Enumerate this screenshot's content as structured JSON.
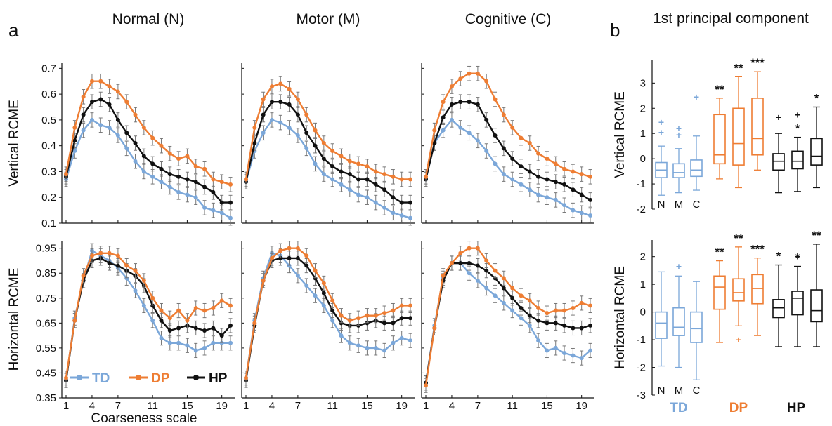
{
  "panel_labels": [
    "a",
    "b"
  ],
  "columns": [
    "Normal (N)",
    "Motor (M)",
    "Cognitive (C)"
  ],
  "xlabel": "Coarseness scale",
  "rows": [
    {
      "ylabel": "Vertical RCME",
      "ylim": [
        0.1,
        0.72
      ],
      "ticks": [
        "0.1",
        "0.2",
        "0.3",
        "0.4",
        "0.5",
        "0.6",
        "0.7"
      ]
    },
    {
      "ylabel": "Horizontal RCME",
      "ylim": [
        0.35,
        0.98
      ],
      "ticks": [
        "0.35",
        "0.45",
        "0.55",
        "0.65",
        "0.75",
        "0.85",
        "0.95"
      ]
    }
  ],
  "xticks": [
    "1",
    "4",
    "7",
    "11",
    "15",
    "19"
  ],
  "legend": [
    {
      "label": "TD",
      "color": "#7ba7d9"
    },
    {
      "label": "DP",
      "color": "#ee7d33"
    },
    {
      "label": "HP",
      "color": "#111111"
    }
  ],
  "colors": {
    "TD": "#7ba7d9",
    "DP": "#ee7d33",
    "HP": "#111111"
  },
  "chart_data": [
    {
      "type": "line",
      "panel": "a",
      "row": "Vertical RCME",
      "column": "Normal (N)",
      "x": [
        1,
        2,
        3,
        4,
        5,
        6,
        7,
        8,
        9,
        10,
        11,
        12,
        13,
        14,
        15,
        16,
        17,
        18,
        19,
        20
      ],
      "series": [
        {
          "name": "TD",
          "values": [
            0.27,
            0.38,
            0.46,
            0.5,
            0.48,
            0.47,
            0.44,
            0.39,
            0.34,
            0.3,
            0.28,
            0.26,
            0.24,
            0.22,
            0.21,
            0.2,
            0.16,
            0.15,
            0.14,
            0.12
          ]
        },
        {
          "name": "DP",
          "values": [
            0.29,
            0.47,
            0.59,
            0.65,
            0.65,
            0.63,
            0.61,
            0.57,
            0.52,
            0.47,
            0.43,
            0.4,
            0.37,
            0.35,
            0.36,
            0.32,
            0.31,
            0.27,
            0.26,
            0.25
          ]
        },
        {
          "name": "HP",
          "values": [
            0.28,
            0.42,
            0.52,
            0.57,
            0.58,
            0.56,
            0.5,
            0.45,
            0.41,
            0.36,
            0.33,
            0.31,
            0.29,
            0.28,
            0.27,
            0.26,
            0.24,
            0.22,
            0.18,
            0.18
          ]
        }
      ]
    },
    {
      "type": "line",
      "panel": "a",
      "row": "Vertical RCME",
      "column": "Motor (M)",
      "x": [
        1,
        2,
        3,
        4,
        5,
        6,
        7,
        8,
        9,
        10,
        11,
        12,
        13,
        14,
        15,
        16,
        17,
        18,
        19,
        20
      ],
      "series": [
        {
          "name": "TD",
          "values": [
            0.26,
            0.38,
            0.45,
            0.5,
            0.49,
            0.47,
            0.44,
            0.39,
            0.33,
            0.29,
            0.27,
            0.25,
            0.23,
            0.21,
            0.2,
            0.18,
            0.16,
            0.14,
            0.13,
            0.12
          ]
        },
        {
          "name": "DP",
          "values": [
            0.27,
            0.47,
            0.58,
            0.63,
            0.64,
            0.62,
            0.58,
            0.52,
            0.46,
            0.41,
            0.38,
            0.36,
            0.34,
            0.33,
            0.32,
            0.3,
            0.29,
            0.28,
            0.27,
            0.27
          ]
        },
        {
          "name": "HP",
          "values": [
            0.26,
            0.41,
            0.52,
            0.57,
            0.57,
            0.56,
            0.52,
            0.45,
            0.4,
            0.35,
            0.32,
            0.3,
            0.29,
            0.27,
            0.27,
            0.25,
            0.23,
            0.2,
            0.18,
            0.18
          ]
        }
      ]
    },
    {
      "type": "line",
      "panel": "a",
      "row": "Vertical RCME",
      "column": "Cognitive (C)",
      "x": [
        1,
        2,
        3,
        4,
        5,
        6,
        7,
        8,
        9,
        10,
        11,
        12,
        13,
        14,
        15,
        16,
        17,
        18,
        19,
        20
      ],
      "series": [
        {
          "name": "TD",
          "values": [
            0.27,
            0.41,
            0.46,
            0.5,
            0.47,
            0.45,
            0.42,
            0.38,
            0.33,
            0.29,
            0.27,
            0.25,
            0.23,
            0.21,
            0.2,
            0.19,
            0.17,
            0.15,
            0.14,
            0.13
          ]
        },
        {
          "name": "DP",
          "values": [
            0.28,
            0.46,
            0.57,
            0.63,
            0.66,
            0.68,
            0.68,
            0.65,
            0.58,
            0.52,
            0.47,
            0.43,
            0.41,
            0.37,
            0.35,
            0.33,
            0.31,
            0.3,
            0.29,
            0.28
          ]
        },
        {
          "name": "HP",
          "values": [
            0.27,
            0.41,
            0.51,
            0.56,
            0.57,
            0.57,
            0.56,
            0.5,
            0.44,
            0.39,
            0.35,
            0.32,
            0.3,
            0.28,
            0.27,
            0.26,
            0.25,
            0.23,
            0.21,
            0.19
          ]
        }
      ]
    },
    {
      "type": "line",
      "panel": "a",
      "row": "Horizontal RCME",
      "column": "Normal (N)",
      "x": [
        1,
        2,
        3,
        4,
        5,
        6,
        7,
        8,
        9,
        10,
        11,
        12,
        13,
        14,
        15,
        16,
        17,
        18,
        19,
        20
      ],
      "series": [
        {
          "name": "TD",
          "values": [
            0.42,
            0.67,
            0.82,
            0.94,
            0.92,
            0.9,
            0.87,
            0.83,
            0.78,
            0.72,
            0.66,
            0.59,
            0.57,
            0.57,
            0.56,
            0.54,
            0.55,
            0.57,
            0.57,
            0.57
          ]
        },
        {
          "name": "DP",
          "values": [
            0.43,
            0.66,
            0.84,
            0.92,
            0.93,
            0.93,
            0.92,
            0.88,
            0.86,
            0.82,
            0.75,
            0.7,
            0.67,
            0.7,
            0.66,
            0.71,
            0.7,
            0.71,
            0.74,
            0.72
          ]
        },
        {
          "name": "HP",
          "values": [
            0.42,
            0.66,
            0.82,
            0.9,
            0.91,
            0.89,
            0.88,
            0.86,
            0.84,
            0.8,
            0.72,
            0.66,
            0.62,
            0.63,
            0.64,
            0.63,
            0.62,
            0.63,
            0.6,
            0.64
          ]
        }
      ]
    },
    {
      "type": "line",
      "panel": "a",
      "row": "Horizontal RCME",
      "column": "Motor (M)",
      "x": [
        1,
        2,
        3,
        4,
        5,
        6,
        7,
        8,
        9,
        10,
        11,
        12,
        13,
        14,
        15,
        16,
        17,
        18,
        19,
        20
      ],
      "series": [
        {
          "name": "TD",
          "values": [
            0.43,
            0.66,
            0.83,
            0.93,
            0.92,
            0.88,
            0.84,
            0.8,
            0.76,
            0.72,
            0.66,
            0.6,
            0.57,
            0.56,
            0.55,
            0.55,
            0.54,
            0.57,
            0.59,
            0.58
          ]
        },
        {
          "name": "DP",
          "values": [
            0.43,
            0.65,
            0.82,
            0.91,
            0.94,
            0.95,
            0.95,
            0.92,
            0.86,
            0.81,
            0.74,
            0.68,
            0.66,
            0.67,
            0.68,
            0.68,
            0.69,
            0.7,
            0.72,
            0.72
          ]
        },
        {
          "name": "HP",
          "values": [
            0.42,
            0.64,
            0.82,
            0.9,
            0.91,
            0.91,
            0.91,
            0.88,
            0.83,
            0.77,
            0.7,
            0.65,
            0.64,
            0.64,
            0.65,
            0.66,
            0.65,
            0.65,
            0.67,
            0.67
          ]
        }
      ]
    },
    {
      "type": "line",
      "panel": "a",
      "row": "Horizontal RCME",
      "column": "Cognitive (C)",
      "x": [
        1,
        2,
        3,
        4,
        5,
        6,
        7,
        8,
        9,
        10,
        11,
        12,
        13,
        14,
        15,
        16,
        17,
        18,
        19,
        20
      ],
      "series": [
        {
          "name": "TD",
          "values": [
            0.41,
            0.64,
            0.83,
            0.89,
            0.89,
            0.85,
            0.82,
            0.79,
            0.76,
            0.73,
            0.7,
            0.67,
            0.64,
            0.58,
            0.54,
            0.55,
            0.53,
            0.52,
            0.51,
            0.54
          ]
        },
        {
          "name": "DP",
          "values": [
            0.4,
            0.63,
            0.84,
            0.89,
            0.93,
            0.95,
            0.95,
            0.9,
            0.86,
            0.83,
            0.79,
            0.76,
            0.74,
            0.71,
            0.69,
            0.7,
            0.7,
            0.71,
            0.73,
            0.72
          ]
        },
        {
          "name": "HP",
          "values": [
            0.41,
            0.63,
            0.82,
            0.89,
            0.89,
            0.89,
            0.88,
            0.86,
            0.83,
            0.79,
            0.75,
            0.71,
            0.68,
            0.66,
            0.65,
            0.65,
            0.64,
            0.63,
            0.63,
            0.64
          ]
        }
      ]
    },
    {
      "type": "box",
      "panel": "b",
      "title": "1st principal component",
      "ylabel": "Vertical RCME",
      "ylim": [
        -2,
        3.9
      ],
      "yticks": [
        -2,
        -1,
        0,
        1,
        2,
        3
      ],
      "groups": [
        "TD",
        "DP",
        "HP"
      ],
      "conditions": [
        "N",
        "M",
        "C"
      ],
      "boxes": [
        {
          "group": "TD",
          "condition": "N",
          "whisker_low": -1.45,
          "q1": -0.75,
          "median": -0.45,
          "q3": -0.15,
          "whisker_high": 0.5,
          "outliers": [
            1.05,
            1.45
          ],
          "sig": ""
        },
        {
          "group": "TD",
          "condition": "M",
          "whisker_low": -1.35,
          "q1": -0.75,
          "median": -0.55,
          "q3": -0.2,
          "whisker_high": 0.4,
          "outliers": [
            0.95,
            1.2
          ],
          "sig": ""
        },
        {
          "group": "TD",
          "condition": "C",
          "whisker_low": -1.25,
          "q1": -0.7,
          "median": -0.45,
          "q3": -0.05,
          "whisker_high": 0.9,
          "outliers": [
            2.45
          ],
          "sig": ""
        },
        {
          "group": "DP",
          "condition": "N",
          "whisker_low": -0.8,
          "q1": -0.2,
          "median": 0.15,
          "q3": 1.75,
          "whisker_high": 2.4,
          "outliers": [],
          "sig": "**"
        },
        {
          "group": "DP",
          "condition": "M",
          "whisker_low": -1.15,
          "q1": -0.25,
          "median": 0.6,
          "q3": 2.0,
          "whisker_high": 3.25,
          "outliers": [],
          "sig": "**"
        },
        {
          "group": "DP",
          "condition": "C",
          "whisker_low": -0.45,
          "q1": 0.15,
          "median": 0.8,
          "q3": 2.4,
          "whisker_high": 3.45,
          "outliers": [],
          "sig": "***"
        },
        {
          "group": "HP",
          "condition": "N",
          "whisker_low": -1.35,
          "q1": -0.45,
          "median": -0.1,
          "q3": 0.2,
          "whisker_high": 1.0,
          "outliers": [
            1.65
          ],
          "sig": ""
        },
        {
          "group": "HP",
          "condition": "M",
          "whisker_low": -1.3,
          "q1": -0.4,
          "median": -0.1,
          "q3": 0.3,
          "whisker_high": 0.85,
          "outliers": [
            1.75
          ],
          "sig": "*"
        },
        {
          "group": "HP",
          "condition": "C",
          "whisker_low": -1.15,
          "q1": -0.25,
          "median": 0.1,
          "q3": 0.8,
          "whisker_high": 2.05,
          "outliers": [],
          "sig": "*"
        }
      ]
    },
    {
      "type": "box",
      "panel": "b",
      "ylabel": "Horizontal RCME",
      "ylim": [
        -3,
        2.6
      ],
      "yticks": [
        -3,
        -2,
        -1,
        0,
        1,
        2
      ],
      "groups": [
        "TD",
        "DP",
        "HP"
      ],
      "conditions": [
        "N",
        "M",
        "C"
      ],
      "boxes": [
        {
          "group": "TD",
          "condition": "N",
          "whisker_low": -1.95,
          "q1": -0.95,
          "median": -0.4,
          "q3": 0.0,
          "whisker_high": 1.45,
          "outliers": [],
          "sig": ""
        },
        {
          "group": "TD",
          "condition": "M",
          "whisker_low": -2.0,
          "q1": -0.85,
          "median": -0.55,
          "q3": 0.15,
          "whisker_high": 1.3,
          "outliers": [
            1.65
          ],
          "sig": ""
        },
        {
          "group": "TD",
          "condition": "C",
          "whisker_low": -2.45,
          "q1": -1.1,
          "median": -0.6,
          "q3": 0.0,
          "whisker_high": 1.1,
          "outliers": [],
          "sig": ""
        },
        {
          "group": "DP",
          "condition": "N",
          "whisker_low": -1.1,
          "q1": 0.1,
          "median": 0.9,
          "q3": 1.3,
          "whisker_high": 1.85,
          "outliers": [],
          "sig": "**"
        },
        {
          "group": "DP",
          "condition": "M",
          "whisker_low": -0.5,
          "q1": 0.4,
          "median": 0.7,
          "q3": 1.2,
          "whisker_high": 2.35,
          "outliers": [
            -1.0
          ],
          "sig": "**"
        },
        {
          "group": "DP",
          "condition": "C",
          "whisker_low": -0.85,
          "q1": 0.3,
          "median": 0.85,
          "q3": 1.35,
          "whisker_high": 1.95,
          "outliers": [],
          "sig": "***"
        },
        {
          "group": "HP",
          "condition": "N",
          "whisker_low": -1.25,
          "q1": -0.2,
          "median": 0.15,
          "q3": 0.45,
          "whisker_high": 1.7,
          "outliers": [],
          "sig": "*"
        },
        {
          "group": "HP",
          "condition": "M",
          "whisker_low": -1.25,
          "q1": -0.1,
          "median": 0.5,
          "q3": 0.75,
          "whisker_high": 1.65,
          "outliers": [
            2.0
          ],
          "sig": "*"
        },
        {
          "group": "HP",
          "condition": "C",
          "whisker_low": -1.25,
          "q1": -0.35,
          "median": 0.05,
          "q3": 0.8,
          "whisker_high": 2.45,
          "outliers": [],
          "sig": "**"
        }
      ]
    }
  ]
}
